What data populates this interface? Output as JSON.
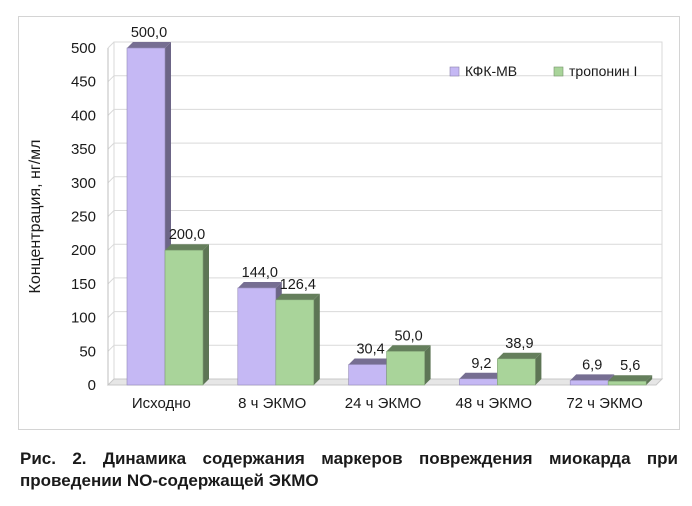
{
  "chart_data": {
    "type": "bar",
    "categories": [
      "Исходно",
      "8 ч ЭКМО",
      "24 ч ЭКМО",
      "48 ч ЭКМО",
      "72 ч ЭКМО"
    ],
    "series": [
      {
        "name": "КФК-MB",
        "values": [
          500.0,
          144.0,
          30.4,
          9.2,
          6.9
        ],
        "labels": [
          "500,0",
          "144,0",
          "30,4",
          "9,2",
          "6,9"
        ],
        "color": "#c5b8f4"
      },
      {
        "name": "тропонин I",
        "values": [
          200.0,
          126.4,
          50.0,
          38.9,
          5.6
        ],
        "labels": [
          "200,0",
          "126,4",
          "50,0",
          "38,9",
          "5,6"
        ],
        "color": "#a9d49a"
      }
    ],
    "ylabel": "Концентрация, нг/мл",
    "xlabel": "",
    "ylim": [
      0,
      500
    ],
    "yticks": [
      "0",
      "50",
      "100",
      "150",
      "200",
      "250",
      "300",
      "350",
      "400",
      "450",
      "500"
    ],
    "grid": true,
    "legend": "top-right"
  },
  "caption": "Рис. 2. Динамика содержания маркеров повреждения миокарда при проведении NO-содержащей ЭКМО"
}
